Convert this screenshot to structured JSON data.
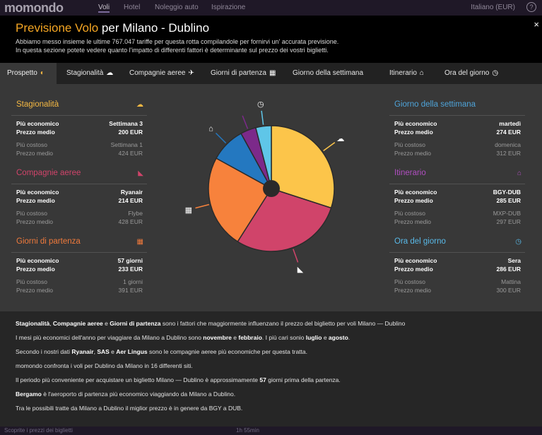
{
  "topnav": {
    "brand": "momondo",
    "links": [
      "Voli",
      "Hotel",
      "Noleggio auto",
      "Ispirazione"
    ],
    "language": "Italiano (EUR)",
    "help": "?"
  },
  "header": {
    "title_main": "Previsione Volo",
    "title_rest": " per Milano - Dublino",
    "subtitle_1": "Abbiamo messo insieme le ultime 767.047 tariffe per questa rotta compilandole per fornirvi un' accurata previsione.",
    "subtitle_2": "In questa sezione potete vedere quanto l'impatto di differenti fattori è determinante sul prezzo dei vostri biglietti.",
    "close": "×"
  },
  "tabs": [
    {
      "label": "Prospetto",
      "icon": "sun-cloud-icon",
      "glyph": "◐"
    },
    {
      "label": "Stagionalità",
      "icon": "weather-icon",
      "glyph": "☁"
    },
    {
      "label": "Compagnie aeree",
      "icon": "plane-icon",
      "glyph": "✈"
    },
    {
      "label": "Giorni di partenza",
      "icon": "calendar-icon",
      "glyph": "▦"
    },
    {
      "label": "Giorno della settimana",
      "icon": "",
      "glyph": ""
    },
    {
      "label": "Itinerario",
      "icon": "route-icon",
      "glyph": "⌂"
    },
    {
      "label": "Ora del giorno",
      "icon": "clock-icon",
      "glyph": "◷"
    }
  ],
  "panels": {
    "stagionalita": {
      "title": "Stagionalità",
      "color": "#f4b843",
      "icon": "weather-icon",
      "glyph": "☁",
      "cheap_label": "Più economico",
      "cheap_value": "Settimana 3",
      "avg_label": "Prezzo medio",
      "cheap_price": "200 EUR",
      "exp_label": "Più costoso",
      "exp_value": "Settimana 1",
      "exp_price": "424 EUR"
    },
    "compagnie": {
      "title": "Compagnie aeree",
      "color": "#d0446a",
      "icon": "plane-icon",
      "glyph": "◣",
      "cheap_label": "Più economico",
      "cheap_value": "Ryanair",
      "avg_label": "Prezzo medio",
      "cheap_price": "214 EUR",
      "exp_label": "Più costoso",
      "exp_value": "Flybe",
      "exp_price": "428 EUR"
    },
    "giorni": {
      "title": "Giorni di partenza",
      "color": "#f07a3c",
      "icon": "calendar-icon",
      "glyph": "▦",
      "cheap_label": "Più economico",
      "cheap_value": "57 giorni",
      "avg_label": "Prezzo medio",
      "cheap_price": "233 EUR",
      "exp_label": "Più costoso",
      "exp_value": "1 giorni",
      "exp_price": "391 EUR"
    },
    "settimana": {
      "title": "Giorno della settimana",
      "color": "#4ea3d8",
      "icon": "",
      "glyph": "",
      "cheap_label": "Più economico",
      "cheap_value": "martedì",
      "avg_label": "Prezzo medio",
      "cheap_price": "274 EUR",
      "exp_label": "Più costoso",
      "exp_value": "domenica",
      "exp_price": "312 EUR"
    },
    "itinerario": {
      "title": "Itinerario",
      "color": "#b04ec0",
      "icon": "route-icon",
      "glyph": "⌂",
      "cheap_label": "Più economico",
      "cheap_value": "BGY-DUB",
      "avg_label": "Prezzo medio",
      "cheap_price": "285 EUR",
      "exp_label": "Più costoso",
      "exp_value": "MXP-DUB",
      "exp_price": "297 EUR"
    },
    "ora": {
      "title": "Ora del giorno",
      "color": "#59b9e8",
      "icon": "clock-icon",
      "glyph": "◷",
      "cheap_label": "Più economico",
      "cheap_value": "Sera",
      "avg_label": "Prezzo medio",
      "cheap_price": "286 EUR",
      "exp_label": "Più costoso",
      "exp_value": "Mattina",
      "exp_price": "300 EUR"
    }
  },
  "chart_data": {
    "type": "pie",
    "slices": [
      {
        "name": "Stagionalità",
        "value": 30,
        "color": "#fcc54a",
        "icon": "weather-icon"
      },
      {
        "name": "Compagnie aeree",
        "value": 29,
        "color": "#d0446a",
        "icon": "plane-icon"
      },
      {
        "name": "Giorni di partenza",
        "value": 24,
        "color": "#f7823c",
        "icon": "calendar-icon"
      },
      {
        "name": "Giorno della settimana",
        "value": 9,
        "color": "#2478c0",
        "icon": "route-icon"
      },
      {
        "name": "Itinerario",
        "value": 4,
        "color": "#7c2a8a",
        "icon": ""
      },
      {
        "name": "Ora del giorno",
        "value": 4,
        "color": "#5fc6e8",
        "icon": "clock-icon"
      }
    ]
  },
  "footer": {
    "l1_b1": "Stagionalità",
    "l1_t1": ", ",
    "l1_b2": "Compagnie aeree",
    "l1_t2": " e ",
    "l1_b3": "Giorni di partenza",
    "l1_t3": " sono i fattori che maggiormente influenzano il prezzo del biglietto per voli Milano — Dublino",
    "l2_t1": "I mesi più economici dell'anno per viaggiare da Milano a Dublino sono ",
    "l2_b1": "novembre",
    "l2_t2": " e ",
    "l2_b2": "febbraio",
    "l2_t3": ". I più cari sonio ",
    "l2_b3": "luglio",
    "l2_t4": " e ",
    "l2_b4": "agosto",
    "l2_t5": ".",
    "l3_t1": "Secondo i nostri dati ",
    "l3_b1": "Ryanair",
    "l3_t2": ", ",
    "l3_b2": "SAS",
    "l3_t3": " e ",
    "l3_b3": "Aer Lingus",
    "l3_t4": " sono le compagnie aeree più economiche per questa tratta.",
    "l4": "momondo confronta i voli per Dublino da Milano in 16 differenti siti.",
    "l5_t1": "Il periodo più conveniente per acquistare un biglietto Milano — Dublino è approssimamente ",
    "l5_b1": "57",
    "l5_t2": " giorni prima della partenza.",
    "l6_b1": "Bergamo",
    "l6_t1": " è l'aeroporto di partenza più economico viaggiando da Milano a Dublino.",
    "l7": "Tra le possibili tratte da Milano a Dublino il miglior prezzo è in genere da BGY a DUB."
  },
  "bottom": {
    "left": "Scoprite i prezzi dei biglietti",
    "mid": "1h 55min"
  }
}
